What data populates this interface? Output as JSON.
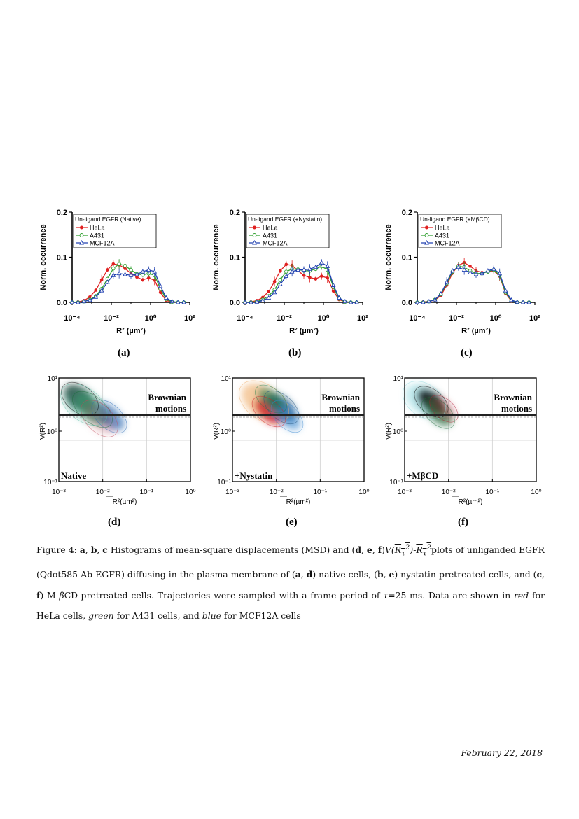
{
  "histograms": [
    {
      "panel_label": "(a)",
      "legend_title": "Un-ligand EGFR (Native)"
    },
    {
      "panel_label": "(b)",
      "legend_title": "Un-ligand EGFR (+Nystatin)"
    },
    {
      "panel_label": "(c)",
      "legend_title": "Un-ligand EGFR (+MβCD)"
    }
  ],
  "hist_axes": {
    "ylabel": "Norm. occurrence",
    "xlabel": "R² (µm²)",
    "yticks": [
      "0.0",
      "0.1",
      "0.2"
    ],
    "xticks": [
      "10⁻⁴",
      "10⁻²",
      "10⁰",
      "10²"
    ]
  },
  "density_panels": [
    {
      "panel_label": "(d)",
      "condition": "Native"
    },
    {
      "panel_label": "(e)",
      "condition": "+Nystatin"
    },
    {
      "panel_label": "(f)",
      "condition": "+MβCD"
    }
  ],
  "density_axes": {
    "ylabel": "V(R²)",
    "xlabel": "R²(µm²)",
    "region_label_1": "Brownian",
    "region_label_2": "motions",
    "yticks": [
      "10¹",
      "10⁰",
      "10⁻¹"
    ],
    "xticks": [
      "10⁻³",
      "10⁻²",
      "10⁻¹",
      "10⁰"
    ]
  },
  "chart_data": [
    {
      "type": "line",
      "panel": "a",
      "title": "Un-ligand EGFR (Native)",
      "xlabel": "R² (µm²)",
      "ylabel": "Norm. occurrence",
      "xscale": "log",
      "xlim": [
        0.0001,
        100
      ],
      "ylim": [
        0,
        0.2
      ],
      "legend": "top-left",
      "x": [
        0.0001,
        0.0002,
        0.0004,
        0.0008,
        0.0016,
        0.0032,
        0.0063,
        0.0126,
        0.025,
        0.05,
        0.1,
        0.2,
        0.4,
        0.8,
        1.6,
        3.2,
        6.3,
        12.6,
        25,
        50
      ],
      "series": [
        {
          "name": "HeLa",
          "color": "#e02020",
          "marker": "circle",
          "values": [
            0.0,
            0.001,
            0.004,
            0.012,
            0.027,
            0.05,
            0.072,
            0.085,
            0.083,
            0.075,
            0.064,
            0.056,
            0.05,
            0.054,
            0.049,
            0.022,
            0.004,
            0.001,
            0.0,
            0.0
          ]
        },
        {
          "name": "A431",
          "color": "#30a030",
          "marker": "open-circle",
          "values": [
            0.0,
            0.0,
            0.002,
            0.006,
            0.014,
            0.03,
            0.052,
            0.075,
            0.085,
            0.081,
            0.072,
            0.063,
            0.061,
            0.064,
            0.06,
            0.03,
            0.007,
            0.001,
            0.0,
            0.0
          ]
        },
        {
          "name": "MCF12A",
          "color": "#2040b0",
          "marker": "open-triangle",
          "values": [
            0.0,
            0.0,
            0.002,
            0.005,
            0.012,
            0.026,
            0.045,
            0.06,
            0.064,
            0.062,
            0.06,
            0.062,
            0.068,
            0.072,
            0.068,
            0.036,
            0.01,
            0.002,
            0.0,
            0.0
          ]
        }
      ]
    },
    {
      "type": "line",
      "panel": "b",
      "title": "Un-ligand EGFR (+Nystatin)",
      "xlabel": "R² (µm²)",
      "ylabel": "Norm. occurrence",
      "xscale": "log",
      "xlim": [
        0.0001,
        100
      ],
      "ylim": [
        0,
        0.2
      ],
      "legend": "top-left",
      "x": [
        0.0001,
        0.0002,
        0.0004,
        0.0008,
        0.0016,
        0.0032,
        0.0063,
        0.0126,
        0.025,
        0.05,
        0.1,
        0.2,
        0.4,
        0.8,
        1.6,
        3.2,
        6.3,
        12.6,
        25,
        50
      ],
      "series": [
        {
          "name": "HeLa",
          "color": "#e02020",
          "marker": "circle",
          "values": [
            0.0,
            0.001,
            0.004,
            0.011,
            0.024,
            0.046,
            0.07,
            0.084,
            0.082,
            0.07,
            0.06,
            0.055,
            0.052,
            0.058,
            0.054,
            0.025,
            0.006,
            0.001,
            0.0,
            0.0
          ]
        },
        {
          "name": "A431",
          "color": "#30a030",
          "marker": "open-circle",
          "values": [
            0.0,
            0.0,
            0.002,
            0.006,
            0.014,
            0.028,
            0.05,
            0.068,
            0.074,
            0.073,
            0.07,
            0.07,
            0.074,
            0.08,
            0.072,
            0.034,
            0.008,
            0.001,
            0.0,
            0.0
          ]
        },
        {
          "name": "MCF12A",
          "color": "#2040b0",
          "marker": "open-triangle",
          "values": [
            0.0,
            0.0,
            0.001,
            0.004,
            0.01,
            0.022,
            0.04,
            0.058,
            0.068,
            0.072,
            0.072,
            0.074,
            0.078,
            0.088,
            0.08,
            0.038,
            0.01,
            0.002,
            0.0,
            0.0
          ]
        }
      ]
    },
    {
      "type": "line",
      "panel": "c",
      "title": "Un-ligand EGFR (+MβCD)",
      "xlabel": "R² (µm²)",
      "ylabel": "Norm. occurrence",
      "xscale": "log",
      "xlim": [
        0.0001,
        100
      ],
      "ylim": [
        0,
        0.2
      ],
      "legend": "top-left",
      "x": [
        0.0001,
        0.0002,
        0.0004,
        0.0008,
        0.0016,
        0.0032,
        0.0063,
        0.0126,
        0.025,
        0.05,
        0.1,
        0.2,
        0.4,
        0.8,
        1.6,
        3.2,
        6.3,
        12.6,
        25,
        50
      ],
      "series": [
        {
          "name": "HeLa",
          "color": "#e02020",
          "marker": "circle",
          "values": [
            0.0,
            0.001,
            0.002,
            0.005,
            0.015,
            0.038,
            0.065,
            0.082,
            0.088,
            0.08,
            0.07,
            0.066,
            0.068,
            0.07,
            0.058,
            0.02,
            0.003,
            0.0,
            0.0,
            0.0
          ]
        },
        {
          "name": "A431",
          "color": "#30a030",
          "marker": "open-circle",
          "values": [
            0.0,
            0.0,
            0.002,
            0.006,
            0.018,
            0.042,
            0.068,
            0.08,
            0.078,
            0.07,
            0.064,
            0.064,
            0.068,
            0.072,
            0.06,
            0.022,
            0.004,
            0.0,
            0.0,
            0.0
          ]
        },
        {
          "name": "MCF12A",
          "color": "#2040b0",
          "marker": "open-triangle",
          "values": [
            0.0,
            0.0,
            0.002,
            0.006,
            0.019,
            0.045,
            0.07,
            0.078,
            0.072,
            0.066,
            0.062,
            0.064,
            0.07,
            0.074,
            0.064,
            0.026,
            0.005,
            0.001,
            0.0,
            0.0
          ]
        }
      ]
    }
  ],
  "caption": {
    "fig_label": "Figure 4:",
    "a": "a",
    "b": "b",
    "c": "c",
    "d": "d",
    "e": "e",
    "f": "f",
    "t1": "Histograms of mean-square displacements (MSD) and (",
    "t2": ")",
    "t3": "plots of unliganded EGFR (Qdot585-Ab-EGFR) diffusing in the plasma membrane of (",
    "t4": ") native cells, (",
    "t5": ") nystatin-pretreated cells, and (",
    "t6": ") M ",
    "t7": "CD-pretreated cells. Trajectories were sampled with a frame period of ",
    "t8": "=25 ms. Data are shown in ",
    "red": "red",
    "t9": " for HeLa cells, ",
    "green": "green",
    "t10": " for A431 cells, and ",
    "blue": "blue",
    "t11": " for MCF12A cells",
    "math_V": "V(",
    "math_R": "R",
    "math_tau": "τ",
    "math_sq": "2",
    "math_close": ")-",
    "beta": "β",
    "tau": "τ",
    "sep1": ", ",
    "sep_and": ", ",
    "comma": ", "
  },
  "date": "February 22, 2018"
}
